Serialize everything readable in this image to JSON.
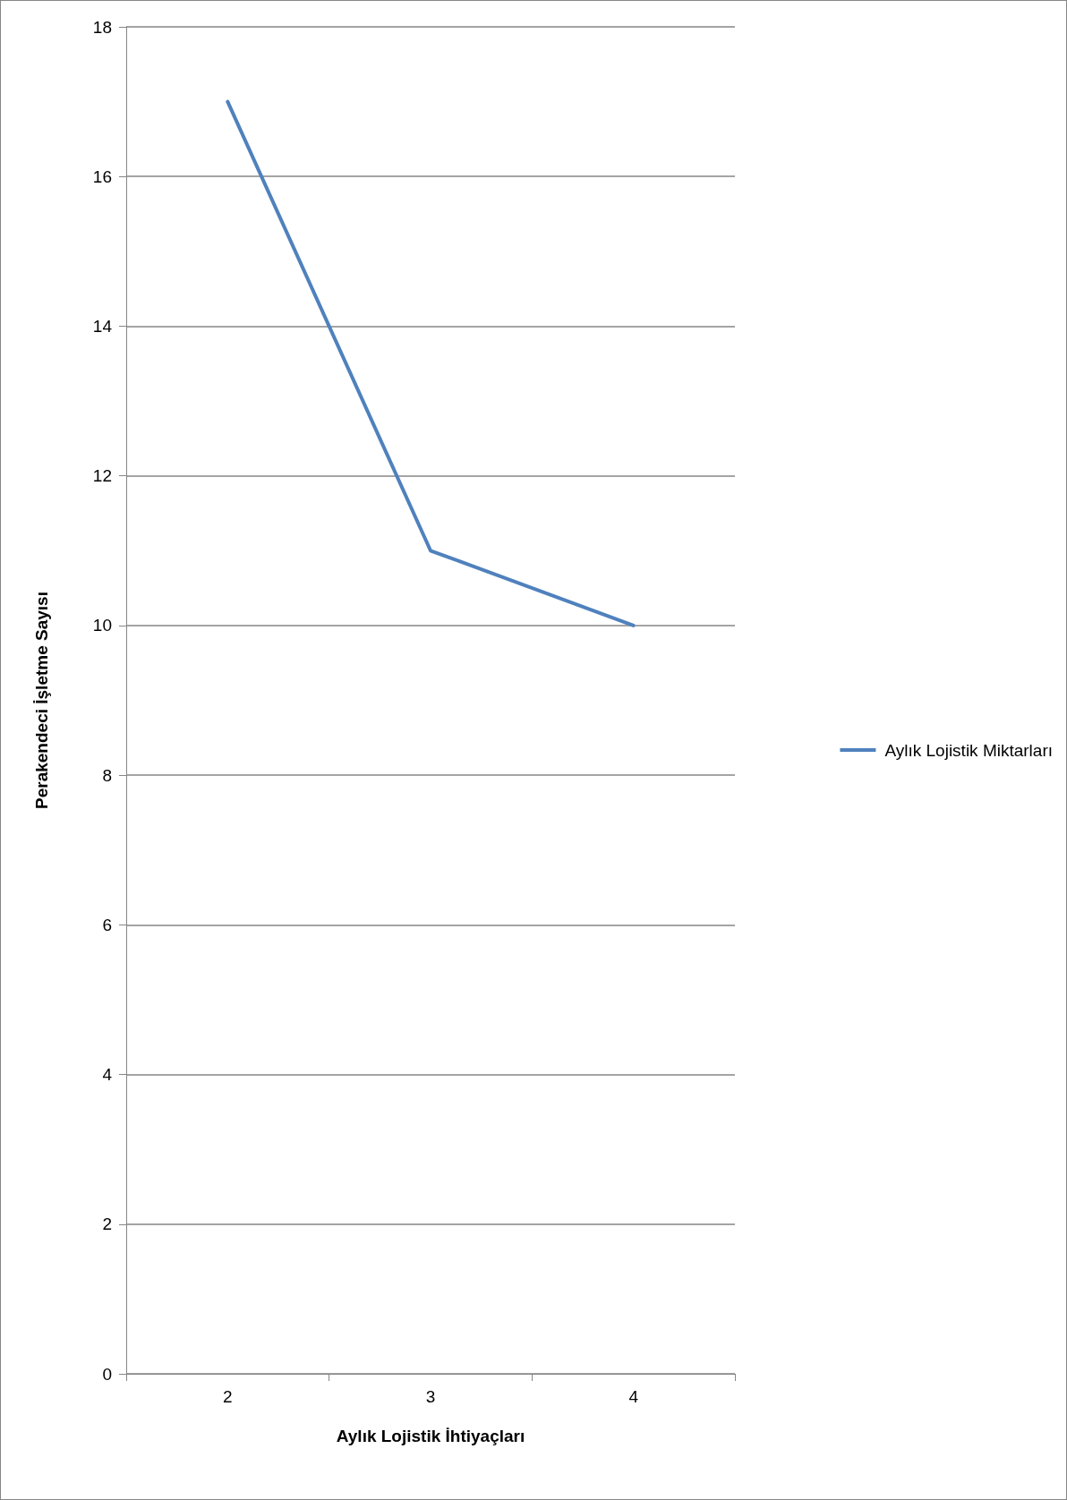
{
  "chart_data": {
    "type": "line",
    "xlabel": "Aylık Lojistik İhtiyaçları",
    "ylabel": "Perakendeci İşletme Sayısı",
    "categories": [
      "2",
      "3",
      "4"
    ],
    "series": [
      {
        "name": "Aylık Lojistik Miktarları",
        "color": "#4f81bd",
        "values": [
          17,
          11,
          10
        ]
      }
    ],
    "ylim": [
      0,
      18
    ],
    "yticks": [
      0,
      2,
      4,
      6,
      8,
      10,
      12,
      14,
      16,
      18
    ],
    "grid": "y",
    "legend": "right",
    "marker": "none",
    "line_style": "solid"
  }
}
